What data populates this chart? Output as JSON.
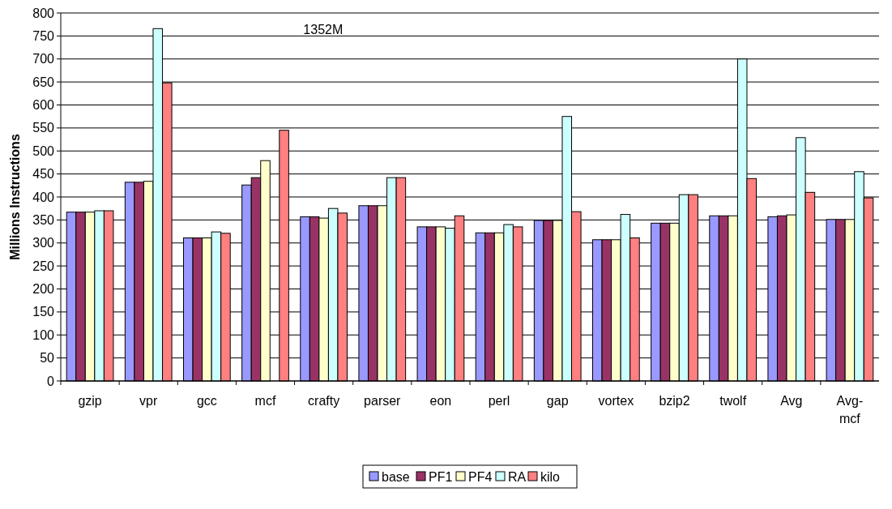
{
  "chart_data": {
    "type": "bar",
    "ylabel": "Millions Instructions",
    "categories": [
      "gzip",
      "vpr",
      "gcc",
      "mcf",
      "crafty",
      "parser",
      "eon",
      "perl",
      "gap",
      "vortex",
      "bzip2",
      "twolf",
      "Avg",
      "Avg-mcf"
    ],
    "series": [
      {
        "name": "base",
        "color": "#9999ff",
        "values": [
          367,
          432,
          311,
          426,
          357,
          381,
          335,
          322,
          349,
          307,
          343,
          359,
          357,
          351
        ]
      },
      {
        "name": "PF1",
        "color": "#993366",
        "values": [
          367,
          432,
          311,
          442,
          357,
          381,
          335,
          322,
          349,
          307,
          343,
          359,
          359,
          351
        ]
      },
      {
        "name": "PF4",
        "color": "#ffffcc",
        "values": [
          367,
          434,
          311,
          479,
          354,
          381,
          335,
          322,
          349,
          307,
          343,
          359,
          361,
          351
        ]
      },
      {
        "name": "RA",
        "color": "#ccffff",
        "values": [
          370,
          766,
          324,
          null,
          375,
          442,
          332,
          340,
          575,
          362,
          405,
          700,
          529,
          455
        ]
      },
      {
        "name": "kilo",
        "color": "#ff8080",
        "values": [
          370,
          648,
          321,
          545,
          365,
          442,
          359,
          335,
          368,
          311,
          405,
          440,
          410,
          398
        ]
      }
    ],
    "ylim": [
      0,
      800
    ],
    "yticks": [
      0,
      50,
      100,
      150,
      200,
      250,
      300,
      350,
      400,
      450,
      500,
      550,
      600,
      650,
      700,
      750,
      800
    ],
    "grid": "y",
    "legend": "bottom",
    "annotations": [
      "1352M"
    ]
  }
}
